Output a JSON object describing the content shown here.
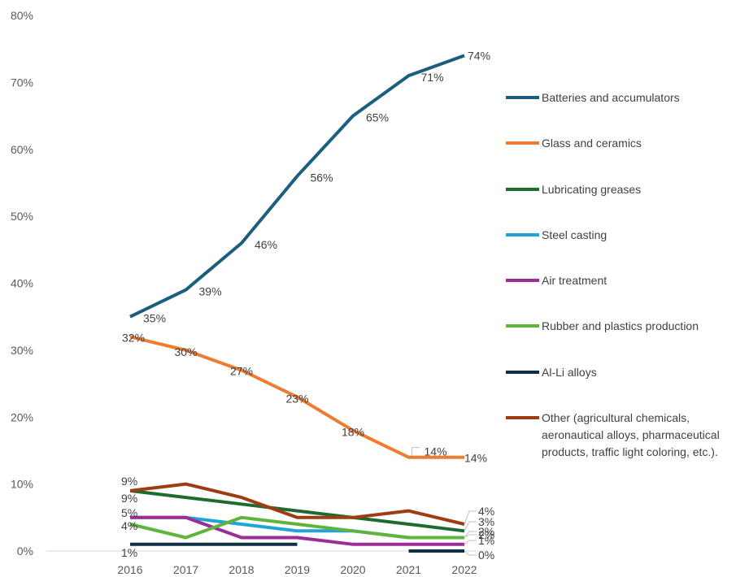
{
  "chart_data": {
    "type": "line",
    "title": "",
    "xlabel": "",
    "ylabel": "",
    "categories": [
      "2016",
      "2017",
      "2018",
      "2019",
      "2020",
      "2021",
      "2022"
    ],
    "ylim": [
      0,
      80
    ],
    "y_ticks": [
      "0%",
      "10%",
      "20%",
      "30%",
      "40%",
      "50%",
      "60%",
      "70%",
      "80%"
    ],
    "grid": false,
    "legend_position": "right",
    "series": [
      {
        "name": "Batteries and accumulators",
        "color": "#1b5e7e",
        "values": [
          35,
          39,
          46,
          56,
          65,
          71,
          74
        ],
        "labels": [
          "35%",
          "39%",
          "46%",
          "56%",
          "65%",
          "71%",
          "74%"
        ]
      },
      {
        "name": "Glass and ceramics",
        "color": "#ed7d31",
        "values": [
          32,
          30,
          27,
          23,
          18,
          14,
          14
        ],
        "labels": [
          "32%",
          "30%",
          "27%",
          "23%",
          "18%",
          "14%",
          "14%"
        ]
      },
      {
        "name": "Lubricating greases",
        "color": "#1e6b30",
        "values": [
          9,
          8,
          7,
          6,
          5,
          4,
          3
        ],
        "labels": [
          "9%",
          "",
          "",
          "",
          "",
          "",
          "3%"
        ]
      },
      {
        "name": "Steel casting",
        "color": "#1ea4d9",
        "values": [
          5,
          5,
          4,
          3,
          3,
          2,
          2
        ],
        "labels": [
          "5%",
          "",
          "",
          "",
          "",
          "",
          "2%"
        ]
      },
      {
        "name": "Air treatment",
        "color": "#9b2d95",
        "values": [
          5,
          5,
          2,
          2,
          1,
          1,
          1
        ],
        "labels": [
          "",
          "",
          "",
          "",
          "",
          "",
          "1%"
        ]
      },
      {
        "name": "Rubber and plastics production",
        "color": "#5fb43c",
        "values": [
          4,
          2,
          5,
          4,
          3,
          2,
          2
        ],
        "labels": [
          "4%",
          "",
          "",
          "",
          "",
          "",
          "2%"
        ]
      },
      {
        "name": "Al-Li alloys",
        "color": "#0d2e44",
        "values": [
          1,
          1,
          1,
          1,
          null,
          0,
          0
        ],
        "labels": [
          "1%",
          "",
          "",
          "",
          "",
          "",
          "0%"
        ]
      },
      {
        "name": "Other (agricultural chemicals, aeronautical alloys, pharmaceutical products, traffic light coloring, etc.).",
        "legend_lines": [
          "Other (agricultural chemicals,",
          "aeronautical alloys, pharmaceutical",
          "products, traffic light coloring, etc.)."
        ],
        "color": "#9c3d12",
        "values": [
          9,
          10,
          8,
          5,
          5,
          6,
          4
        ],
        "labels": [
          "9%",
          "",
          "",
          "",
          "",
          "",
          "4%"
        ]
      }
    ]
  }
}
